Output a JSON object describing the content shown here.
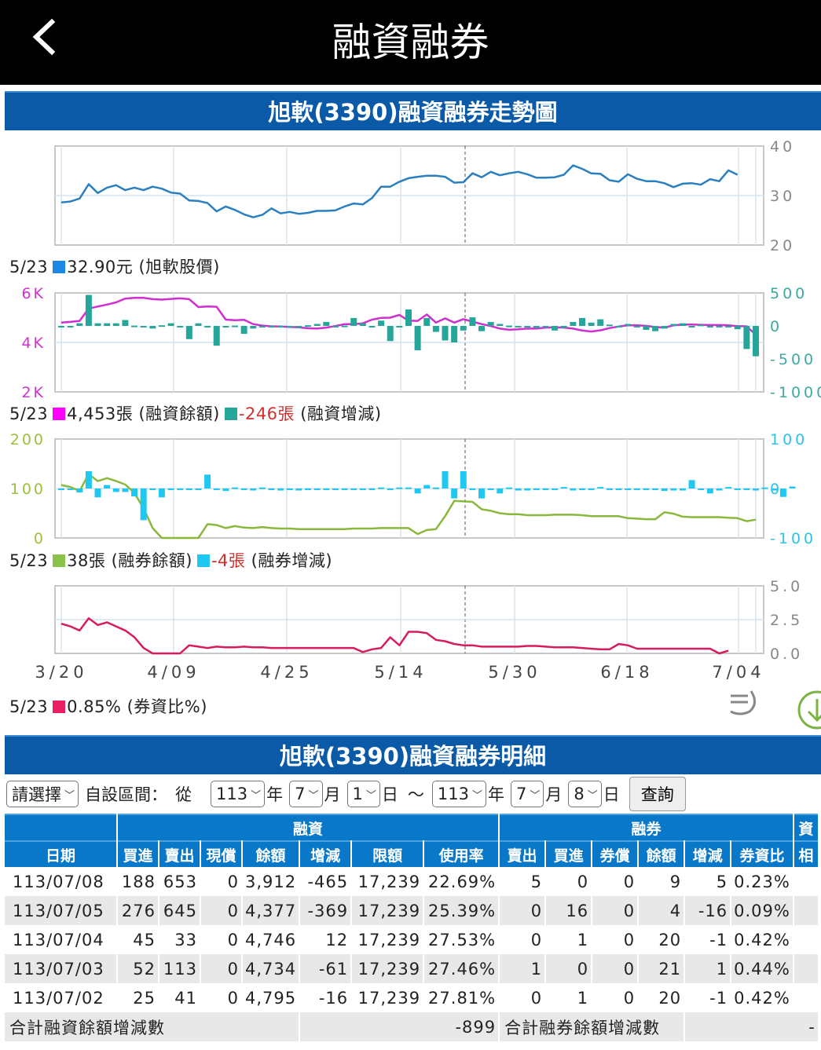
{
  "header": {
    "title": "融資融券",
    "back_icon": "chevron-left-icon"
  },
  "chart_section": {
    "title": "旭軟(3390)融資融券走勢圖"
  },
  "legends": {
    "price": {
      "date": "5/23",
      "value": "32.90元",
      "label": "(旭軟股價)",
      "color": "#1e88e5"
    },
    "margin": {
      "date": "5/23",
      "balance": "4,453張",
      "balance_label": "(融資餘額)",
      "balance_color": "#ff00ff",
      "change": "-246張",
      "change_label": "(融資增減)",
      "change_color": "#26a69a"
    },
    "short": {
      "date": "5/23",
      "balance": "38張",
      "balance_label": "(融券餘額)",
      "balance_color": "#8bc34a",
      "change": "-4張",
      "change_label": "(融券增減)",
      "change_color": "#1ec8f0"
    },
    "ratio": {
      "date": "5/23",
      "value": "0.85%",
      "label": "(券資比%)",
      "color": "#e91e63"
    }
  },
  "chart_data": [
    {
      "type": "line",
      "title": "旭軟股價",
      "y_ticks_right": [
        "40",
        "30",
        "20"
      ],
      "ylim": [
        20,
        40
      ],
      "x_ticks": [
        "3/20",
        "4/09",
        "4/25",
        "5/14",
        "5/30",
        "6/18",
        "7/04"
      ],
      "series": [
        {
          "name": "旭軟股價",
          "color": "#2a7fc0",
          "values": [
            28.6,
            28.8,
            29.4,
            32.3,
            30.5,
            31.6,
            32.1,
            31.1,
            31.6,
            31.1,
            31.8,
            31.4,
            30.6,
            30.4,
            29,
            28.9,
            28.5,
            26.8,
            27.8,
            27.1,
            26.2,
            25.6,
            26.1,
            27.4,
            26.4,
            26.7,
            26.3,
            26.5,
            26.9,
            26.9,
            27,
            27.8,
            28.4,
            28.2,
            29.5,
            31.8,
            31.8,
            32.8,
            33.5,
            33.8,
            34,
            34,
            33.8,
            32.6,
            32.7,
            34.5,
            33.7,
            34.8,
            34.1,
            34.5,
            34.8,
            34.3,
            33.6,
            33.6,
            33.7,
            34.2,
            36.1,
            35.4,
            34.5,
            34.4,
            33.1,
            32.8,
            34.3,
            33.4,
            32.9,
            32.9,
            32.5,
            31.7,
            32.4,
            32.5,
            32.2,
            33.3,
            32.9,
            35.1,
            34.2
          ]
        }
      ]
    },
    {
      "type": "bar+line",
      "title": "融資餘額 / 融資增減",
      "y_ticks_left": [
        "6K",
        "4K",
        "2K"
      ],
      "ylim_left": [
        2000,
        6000
      ],
      "y_ticks_right": [
        "500",
        "0",
        "-500",
        "-1000"
      ],
      "ylim_right": [
        -1000,
        500
      ],
      "series": [
        {
          "name": "融資餘額",
          "color": "#d02ed0",
          "axis": "left",
          "values": [
            4800,
            4830,
            4870,
            5370,
            5450,
            5530,
            5620,
            5770,
            5800,
            5800,
            5750,
            5730,
            5760,
            5780,
            5750,
            5430,
            5450,
            5440,
            4920,
            4900,
            4910,
            4740,
            4680,
            4650,
            4640,
            4630,
            4610,
            4570,
            4560,
            4600,
            4660,
            4740,
            4740,
            4770,
            4920,
            4990,
            5000,
            5110,
            4880,
            4870,
            5130,
            4800,
            4970,
            4800,
            4940,
            4840,
            4740,
            4660,
            4560,
            4510,
            4530,
            4560,
            4560,
            4600,
            4610,
            4600,
            4560,
            4480,
            4440,
            4490,
            4580,
            4640,
            4690,
            4690,
            4670,
            4620,
            4600,
            4690,
            4720,
            4720,
            4710,
            4700,
            4700,
            4690,
            4660,
            4650,
            4310
          ]
        },
        {
          "name": "融資增減",
          "color": "#26a69a",
          "axis": "right",
          "type": "bar",
          "values": [
            0,
            0,
            40,
            470,
            40,
            40,
            40,
            90,
            5,
            -20,
            -40,
            10,
            40,
            -5,
            -200,
            40,
            -20,
            -300,
            -5,
            5,
            -120,
            -40,
            -10,
            -20,
            -10,
            -10,
            -30,
            10,
            30,
            60,
            -10,
            5,
            120,
            40,
            0,
            80,
            -230,
            -10,
            250,
            -370,
            120,
            -90,
            -220,
            -250,
            -70,
            130,
            -80,
            60,
            30,
            5,
            -20,
            -20,
            -30,
            -10,
            -70,
            -30,
            60,
            120,
            50,
            100,
            20,
            -20,
            30,
            0,
            -60,
            -80,
            -40,
            30,
            40,
            -10,
            20,
            0,
            -10,
            -10,
            -50,
            -350,
            -460
          ]
        }
      ]
    },
    {
      "type": "bar+line",
      "title": "融券餘額 / 融券增減",
      "y_ticks_left": [
        "200",
        "100",
        "0"
      ],
      "ylim_left": [
        0,
        200
      ],
      "y_ticks_right": [
        "100",
        "0",
        "-100"
      ],
      "ylim_right": [
        -100,
        100
      ],
      "series": [
        {
          "name": "融券餘額",
          "color": "#8ab83c",
          "axis": "left",
          "values": [
            107,
            103,
            95,
            129,
            115,
            121,
            115,
            108,
            91,
            60,
            20,
            0,
            0,
            0,
            0,
            0,
            28,
            26,
            20,
            24,
            21,
            20,
            22,
            20,
            19,
            19,
            18,
            18,
            18,
            18,
            18,
            18,
            19,
            19,
            19,
            20,
            20,
            20,
            20,
            8,
            16,
            18,
            44,
            75,
            74,
            73,
            58,
            55,
            50,
            48,
            48,
            46,
            46,
            46,
            47,
            47,
            47,
            46,
            44,
            44,
            44,
            44,
            40,
            39,
            38,
            38,
            52,
            49,
            43,
            42,
            42,
            42,
            42,
            41,
            40,
            34,
            37
          ]
        },
        {
          "name": "融券增減",
          "color": "#1ec8f0",
          "axis": "right",
          "type": "bar",
          "values": [
            0,
            0,
            -8,
            35,
            -18,
            7,
            -7,
            -7,
            -16,
            -64,
            0,
            -18,
            0,
            0,
            0,
            0,
            28,
            -3,
            -5,
            2,
            -3,
            -4,
            2,
            -3,
            -4,
            0,
            -4,
            0,
            0,
            0,
            0,
            0,
            0,
            0,
            0,
            2,
            0,
            2,
            2,
            -10,
            7,
            2,
            35,
            -20,
            35,
            -3,
            -20,
            -3,
            -10,
            2,
            -4,
            -4,
            0,
            0,
            0,
            3,
            -4,
            0,
            0,
            3,
            0,
            0,
            -3,
            -3,
            0,
            0,
            -5,
            -4,
            -4,
            17,
            -3,
            -10,
            -4,
            3,
            0,
            0,
            -4,
            2,
            -4,
            -17,
            4
          ]
        }
      ]
    },
    {
      "type": "line",
      "title": "券資比%",
      "y_ticks_right": [
        "5.0",
        "2.5",
        "0.0"
      ],
      "ylim": [
        0,
        5
      ],
      "x_ticks": [
        "3/20",
        "4/09",
        "4/25",
        "5/14",
        "5/30",
        "6/18",
        "7/04"
      ],
      "series": [
        {
          "name": "券資比%",
          "color": "#d81b60",
          "values": [
            2.2,
            2.0,
            1.7,
            2.6,
            2.1,
            2.3,
            2.0,
            1.7,
            1.2,
            0.4,
            0.0,
            0.0,
            0.0,
            0.0,
            0.6,
            0.5,
            0.4,
            0.5,
            0.45,
            0.45,
            0.5,
            0.45,
            0.45,
            0.4,
            0.4,
            0.4,
            0.4,
            0.4,
            0.4,
            0.4,
            0.4,
            0.4,
            0.4,
            0.1,
            0.3,
            0.4,
            1.2,
            0.6,
            1.6,
            1.6,
            1.5,
            1.0,
            0.9,
            0.7,
            0.6,
            0.6,
            0.5,
            0.5,
            0.5,
            0.5,
            0.5,
            0.55,
            0.55,
            0.5,
            0.45,
            0.45,
            0.45,
            0.4,
            0.35,
            0.3,
            0.3,
            0.7,
            0.6,
            0.35,
            0.35,
            0.35,
            0.35,
            0.35,
            0.35,
            0.35,
            0.35,
            0.35,
            0.0,
            0.2
          ]
        }
      ]
    }
  ],
  "chart_icons": {
    "menu_icon": "menu-icon",
    "download_icon": "download-icon"
  },
  "detail_section": {
    "title": "旭軟(3390)融資融券明細"
  },
  "filter": {
    "preset": "請選擇",
    "custom_label": "自設區間：",
    "from_label": "從",
    "from_year": "113",
    "year_unit": "年",
    "from_month": "7",
    "month_unit": "月",
    "from_day": "1",
    "day_unit": "日",
    "tilde": "～",
    "to_year": "113",
    "to_month": "7",
    "to_day": "8",
    "query_button": "查詢"
  },
  "table": {
    "group_headers": {
      "margin": "融資",
      "short": "融券",
      "extra": "資"
    },
    "columns": [
      "日期",
      "買進",
      "賣出",
      "現償",
      "餘額",
      "增減",
      "限額",
      "使用率",
      "賣出",
      "買進",
      "券償",
      "餘額",
      "增減",
      "券資比",
      "相"
    ],
    "rows": [
      [
        "113/07/08",
        "188",
        "653",
        "0",
        "3,912",
        "-465",
        "17,239",
        "22.69%",
        "5",
        "0",
        "0",
        "9",
        "5",
        "0.23%",
        ""
      ],
      [
        "113/07/05",
        "276",
        "645",
        "0",
        "4,377",
        "-369",
        "17,239",
        "25.39%",
        "0",
        "16",
        "0",
        "4",
        "-16",
        "0.09%",
        ""
      ],
      [
        "113/07/04",
        "45",
        "33",
        "0",
        "4,746",
        "12",
        "17,239",
        "27.53%",
        "0",
        "1",
        "0",
        "20",
        "-1",
        "0.42%",
        ""
      ],
      [
        "113/07/03",
        "52",
        "113",
        "0",
        "4,734",
        "-61",
        "17,239",
        "27.46%",
        "1",
        "0",
        "0",
        "21",
        "1",
        "0.44%",
        ""
      ],
      [
        "113/07/02",
        "25",
        "41",
        "0",
        "4,795",
        "-16",
        "17,239",
        "27.81%",
        "0",
        "1",
        "0",
        "20",
        "-1",
        "0.42%",
        ""
      ]
    ],
    "totals": {
      "margin_label": "合計融資餘額增減數",
      "margin_value": "-899",
      "short_label": "合計融券餘額增減數",
      "short_value": "-"
    }
  }
}
